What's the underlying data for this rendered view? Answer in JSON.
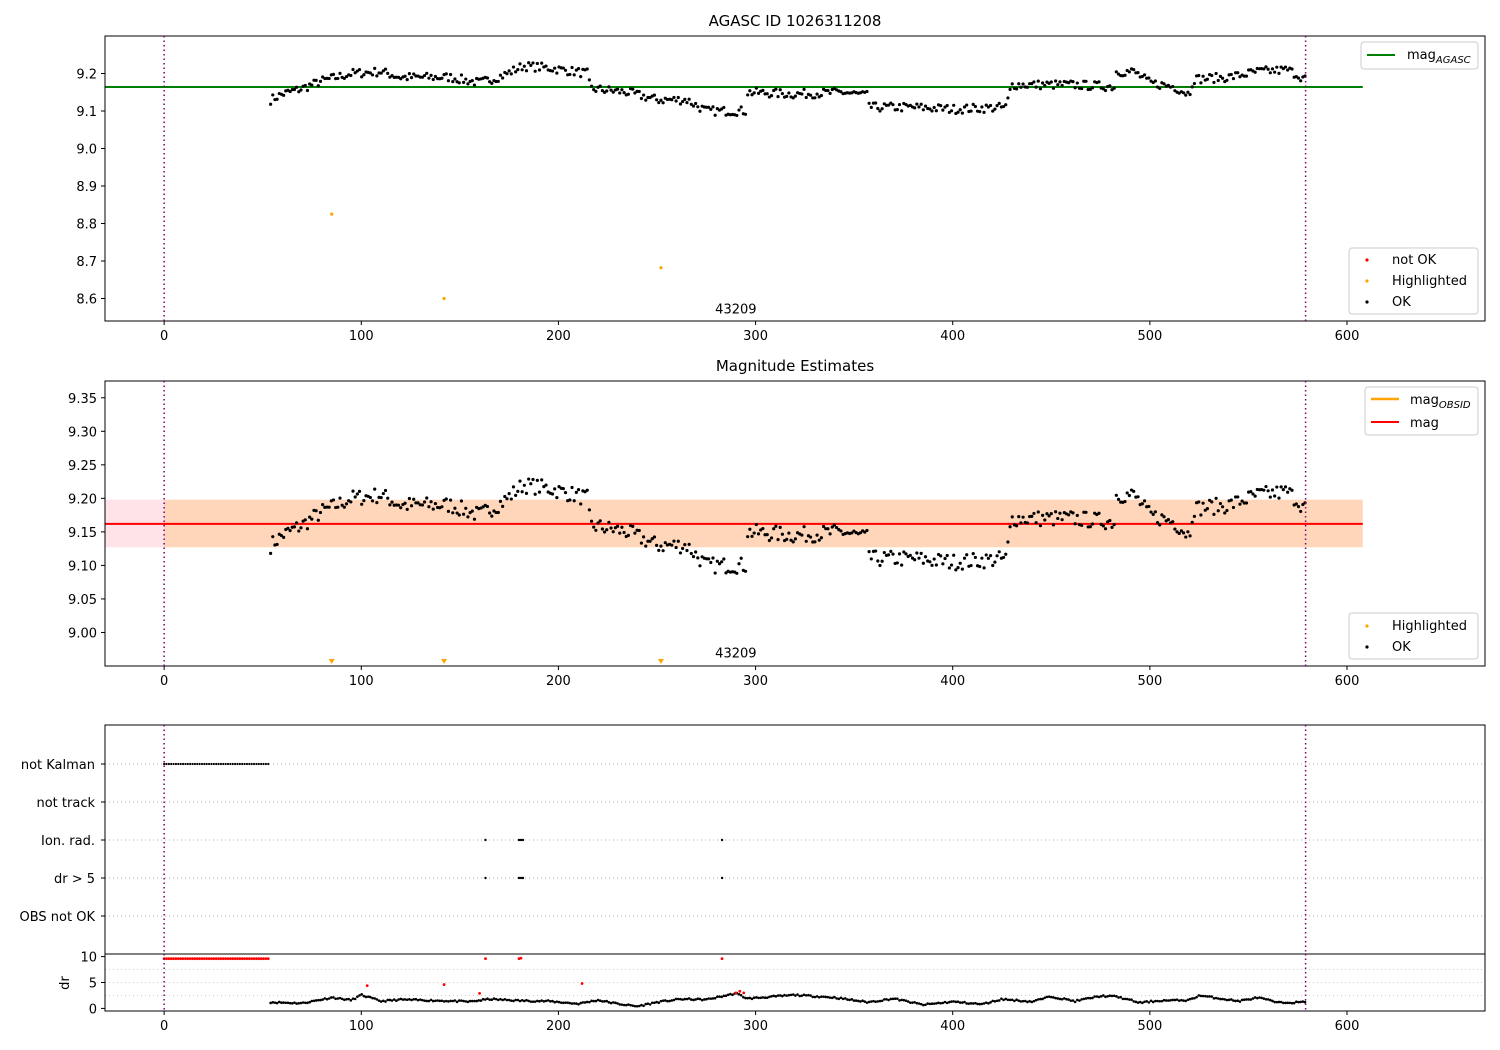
{
  "chart_data": [
    {
      "type": "scatter",
      "title": "AGASC ID 1026311208",
      "xlabel": "",
      "ylabel": "",
      "xlim": [
        -30,
        670
      ],
      "ylim": [
        8.54,
        9.3
      ],
      "xticks": [
        0,
        100,
        200,
        300,
        400,
        500,
        600
      ],
      "yticks": [
        8.6,
        8.7,
        8.8,
        8.9,
        9.0,
        9.1,
        9.2
      ],
      "grid": false,
      "obsid_label": {
        "text": "43209",
        "x": 290,
        "y": 8.555
      },
      "vlines": [
        0,
        579
      ],
      "hline": {
        "name": "mag_AGASC",
        "value": 9.164,
        "x_range": [
          -30,
          608
        ],
        "color": "#008000"
      },
      "legend_top": {
        "placement": "upper right",
        "entries": [
          {
            "label_main": "mag",
            "label_sub": "AGASC",
            "color": "#008000",
            "kind": "line"
          }
        ]
      },
      "legend_bottom": {
        "placement": "lower right",
        "entries": [
          {
            "label": "not OK",
            "color": "#ff0000",
            "kind": "dot"
          },
          {
            "label": "Highlighted",
            "color": "#ffa500",
            "kind": "dot"
          },
          {
            "label": "OK",
            "color": "#000000",
            "kind": "dot"
          }
        ]
      },
      "series": [
        {
          "name": "OK",
          "color": "#000000",
          "trend": [
            [
              54,
              9.13
            ],
            [
              60,
              9.145
            ],
            [
              70,
              9.16
            ],
            [
              80,
              9.18
            ],
            [
              95,
              9.2
            ],
            [
              110,
              9.205
            ],
            [
              120,
              9.19
            ],
            [
              130,
              9.19
            ],
            [
              145,
              9.19
            ],
            [
              160,
              9.175
            ],
            [
              172,
              9.195
            ],
            [
              182,
              9.22
            ],
            [
              195,
              9.215
            ],
            [
              215,
              9.2
            ],
            [
              216,
              9.16
            ],
            [
              235,
              9.15
            ],
            [
              250,
              9.13
            ],
            [
              265,
              9.13
            ],
            [
              275,
              9.1
            ],
            [
              295,
              9.1
            ],
            [
              296,
              9.15
            ],
            [
              320,
              9.145
            ],
            [
              345,
              9.15
            ],
            [
              357,
              9.14
            ],
            [
              358,
              9.11
            ],
            [
              380,
              9.11
            ],
            [
              400,
              9.105
            ],
            [
              427,
              9.11
            ],
            [
              430,
              9.17
            ],
            [
              460,
              9.17
            ],
            [
              482,
              9.165
            ],
            [
              483,
              9.205
            ],
            [
              492,
              9.205
            ],
            [
              500,
              9.175
            ],
            [
              512,
              9.165
            ],
            [
              520,
              9.145
            ],
            [
              522,
              9.185
            ],
            [
              540,
              9.19
            ],
            [
              555,
              9.205
            ],
            [
              570,
              9.21
            ],
            [
              579,
              9.185
            ]
          ],
          "noise": 0.012,
          "step": 1.1
        },
        {
          "name": "Highlighted",
          "color": "#ffa500",
          "points": [
            [
              85,
              8.825
            ],
            [
              142,
              8.6
            ],
            [
              252,
              8.682
            ]
          ]
        }
      ]
    },
    {
      "type": "scatter",
      "title": "Magnitude Estimates",
      "xlabel": "",
      "ylabel": "",
      "xlim": [
        -30,
        670
      ],
      "ylim": [
        8.95,
        9.375
      ],
      "xticks": [
        0,
        100,
        200,
        300,
        400,
        500,
        600
      ],
      "yticks": [
        9.0,
        9.05,
        9.1,
        9.15,
        9.2,
        9.25,
        9.3,
        9.35
      ],
      "grid": false,
      "obsid_label": {
        "text": "43209",
        "x": 290,
        "y": 8.96
      },
      "vlines": [
        0,
        579
      ],
      "mag_line": {
        "name": "mag",
        "value": 9.162,
        "x_range": [
          -30,
          608
        ],
        "color": "#ff0000"
      },
      "bands": [
        {
          "y_range": [
            9.127,
            9.198
          ],
          "x_range": [
            -30,
            608
          ],
          "color": "#ffc0cb",
          "opacity": 0.45
        },
        {
          "y_range": [
            9.127,
            9.198
          ],
          "x_range": [
            0,
            608
          ],
          "color": "#ffa500",
          "opacity": 0.2
        }
      ],
      "highlight_markers_x": [
        85,
        142,
        252
      ],
      "legend_top": {
        "placement": "upper right",
        "entries": [
          {
            "label_main": "mag",
            "label_sub": "OBSID",
            "color": "#ffa500",
            "kind": "line"
          },
          {
            "label": "mag",
            "color": "#ff0000",
            "kind": "line"
          }
        ]
      },
      "legend_bottom": {
        "placement": "lower right",
        "entries": [
          {
            "label": "Highlighted",
            "color": "#ffa500",
            "kind": "dot"
          },
          {
            "label": "OK",
            "color": "#000000",
            "kind": "dot"
          }
        ]
      }
    },
    {
      "type": "scatter",
      "title": "",
      "xlim": [
        -30,
        670
      ],
      "flag_rows": [
        "not Kalman",
        "not track",
        "Ion. rad.",
        "dr > 5",
        "OBS not OK"
      ],
      "flag_points": {
        "not Kalman": {
          "ranges": [
            [
              0,
              54
            ]
          ]
        },
        "not track": {
          "ranges": []
        },
        "Ion. rad.": {
          "points": [
            163,
            180,
            181,
            182,
            283
          ]
        },
        "dr > 5": {
          "points": [
            163,
            180,
            181,
            182,
            283
          ]
        },
        "OBS not OK": {
          "ranges": []
        }
      },
      "vlines": [
        0,
        579
      ]
    },
    {
      "type": "scatter",
      "title": "",
      "xlabel": "",
      "ylabel": "dr",
      "xlim": [
        -30,
        670
      ],
      "ylim": [
        -0.5,
        10.5
      ],
      "xticks": [
        0,
        100,
        200,
        300,
        400,
        500,
        600
      ],
      "yticks": [
        0,
        5,
        10
      ],
      "grid": true,
      "vlines": [
        0,
        579
      ],
      "red_capped_range": [
        0,
        54
      ],
      "red_points": [
        [
          103,
          4.4
        ],
        [
          142,
          4.6
        ],
        [
          163,
          9.6
        ],
        [
          160,
          2.9
        ],
        [
          180,
          9.6
        ],
        [
          181,
          9.7
        ],
        [
          212,
          4.8
        ],
        [
          283,
          9.6
        ],
        [
          290,
          3.0
        ],
        [
          292,
          3.3
        ],
        [
          294,
          3.0
        ]
      ],
      "trend": [
        [
          54,
          1.2
        ],
        [
          70,
          1.0
        ],
        [
          85,
          2.1
        ],
        [
          95,
          1.6
        ],
        [
          100,
          2.6
        ],
        [
          110,
          1.4
        ],
        [
          120,
          1.7
        ],
        [
          140,
          1.5
        ],
        [
          155,
          1.3
        ],
        [
          165,
          1.8
        ],
        [
          180,
          1.5
        ],
        [
          195,
          1.4
        ],
        [
          210,
          0.9
        ],
        [
          220,
          1.6
        ],
        [
          230,
          0.9
        ],
        [
          240,
          0.4
        ],
        [
          250,
          1.2
        ],
        [
          262,
          1.8
        ],
        [
          275,
          1.7
        ],
        [
          290,
          2.9
        ],
        [
          296,
          1.9
        ],
        [
          320,
          2.6
        ],
        [
          340,
          2.1
        ],
        [
          357,
          1.2
        ],
        [
          370,
          1.9
        ],
        [
          385,
          0.7
        ],
        [
          400,
          1.3
        ],
        [
          415,
          0.8
        ],
        [
          425,
          1.8
        ],
        [
          440,
          1.3
        ],
        [
          450,
          2.3
        ],
        [
          462,
          1.4
        ],
        [
          475,
          2.4
        ],
        [
          483,
          2.3
        ],
        [
          495,
          1.1
        ],
        [
          505,
          1.5
        ],
        [
          520,
          1.6
        ],
        [
          525,
          2.5
        ],
        [
          545,
          1.4
        ],
        [
          555,
          2.1
        ],
        [
          565,
          1.1
        ],
        [
          579,
          1.2
        ]
      ]
    }
  ]
}
